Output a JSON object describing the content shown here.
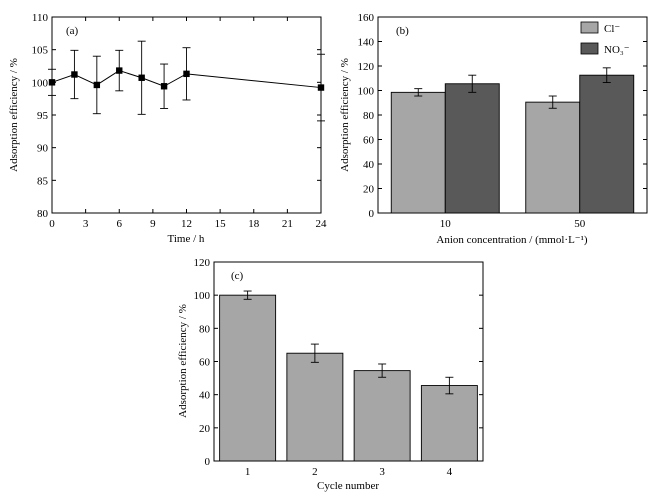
{
  "chart_data": [
    {
      "panel_label": "(a)",
      "type": "line",
      "xlabel": "Time / h",
      "ylabel": "Adsorption efficiency / %",
      "xlim": [
        0,
        24
      ],
      "ylim": [
        80,
        110
      ],
      "xticks": [
        "0",
        "3",
        "6",
        "9",
        "12",
        "15",
        "18",
        "21",
        "24"
      ],
      "yticks": [
        "80",
        "85",
        "90",
        "95",
        "100",
        "105",
        "110"
      ],
      "series": [
        {
          "color": "#000000",
          "marker": "square",
          "x": [
            0,
            2,
            4,
            6,
            8,
            10,
            12,
            24
          ],
          "y": [
            100.0,
            101.2,
            99.6,
            101.8,
            100.7,
            99.4,
            101.3,
            99.2
          ],
          "err": [
            2.0,
            3.7,
            4.4,
            3.1,
            5.6,
            3.4,
            4.0,
            5.1
          ]
        }
      ]
    },
    {
      "panel_label": "(b)",
      "type": "bar",
      "xlabel": "Anion concentration / (mmol·L⁻¹)",
      "ylabel": "Adsorption efficiency / %",
      "ylim": [
        0,
        160
      ],
      "yticks": [
        "0",
        "20",
        "40",
        "60",
        "80",
        "100",
        "120",
        "140",
        "160"
      ],
      "categories": [
        "10",
        "50"
      ],
      "legend_position": "top-right",
      "series": [
        {
          "name": "Cl⁻",
          "color": "#a6a6a6",
          "values": [
            98.5,
            90.5
          ],
          "err": [
            3.0,
            5.0
          ]
        },
        {
          "name": "NO₃⁻",
          "color": "#595959",
          "values": [
            105.5,
            112.5
          ],
          "err": [
            7.0,
            6.0
          ]
        }
      ]
    },
    {
      "panel_label": "(c)",
      "type": "bar",
      "xlabel": "Cycle number",
      "ylabel": "Adsorption efficiency / %",
      "ylim": [
        0,
        120
      ],
      "yticks": [
        "0",
        "20",
        "40",
        "60",
        "80",
        "100",
        "120"
      ],
      "categories": [
        "1",
        "2",
        "3",
        "4"
      ],
      "series": [
        {
          "color": "#a6a6a6",
          "values": [
            100.0,
            65.0,
            54.5,
            45.5
          ],
          "err": [
            2.5,
            5.5,
            4.0,
            5.0
          ]
        }
      ]
    }
  ]
}
